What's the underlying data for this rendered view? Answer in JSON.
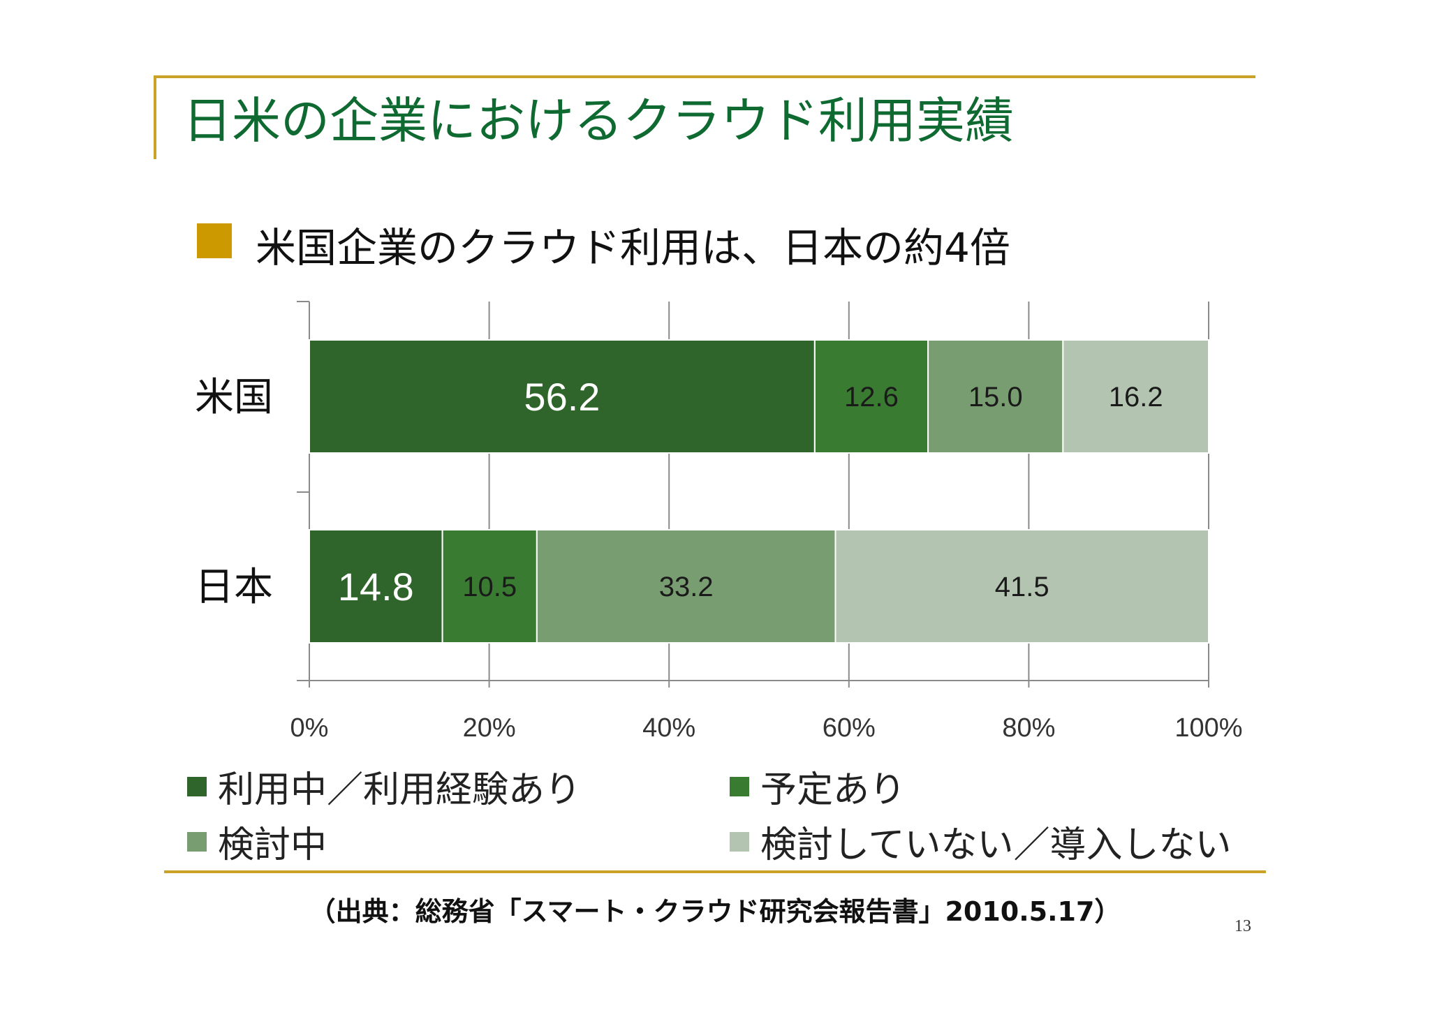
{
  "slide": {
    "title": "日米の企業におけるクラウド利用実績",
    "bullet": "米国企業のクラウド利用は、日本の約4倍",
    "source": "（出典：総務省「スマート・クラウド研究会報告書」2010.5.17）",
    "page_number": "13"
  },
  "colors": {
    "accent_gold": "#c9a227",
    "bullet_square": "#cc9900",
    "title_green": "#0e6a30"
  },
  "chart_data": {
    "type": "bar",
    "orientation": "horizontal",
    "stacked": true,
    "percent": true,
    "title": "",
    "categories": [
      "米国",
      "日本"
    ],
    "series": [
      {
        "name": "利用中／利用経験あり",
        "values": [
          56.2,
          14.8
        ],
        "labels": [
          "56.2",
          "14.8"
        ],
        "color": "#2f642a",
        "label_color": "#ffffff"
      },
      {
        "name": "予定あり",
        "values": [
          12.6,
          10.5
        ],
        "labels": [
          "12.6",
          "10.5"
        ],
        "color": "#3a7b32",
        "label_color": "#1a1a1a"
      },
      {
        "name": "検討中",
        "values": [
          15.0,
          33.2
        ],
        "labels": [
          "15.0",
          "33.2"
        ],
        "color": "#789d70",
        "label_color": "#1a1a1a"
      },
      {
        "name": "検討していない／導入しない",
        "values": [
          16.2,
          41.5
        ],
        "labels": [
          "16.2",
          "41.5"
        ],
        "color": "#b3c5b0",
        "label_color": "#1a1a1a"
      }
    ],
    "x_ticks": [
      "0%",
      "20%",
      "40%",
      "60%",
      "80%",
      "100%"
    ],
    "xlim": [
      0,
      100
    ],
    "grid": true,
    "legend_position": "bottom"
  }
}
